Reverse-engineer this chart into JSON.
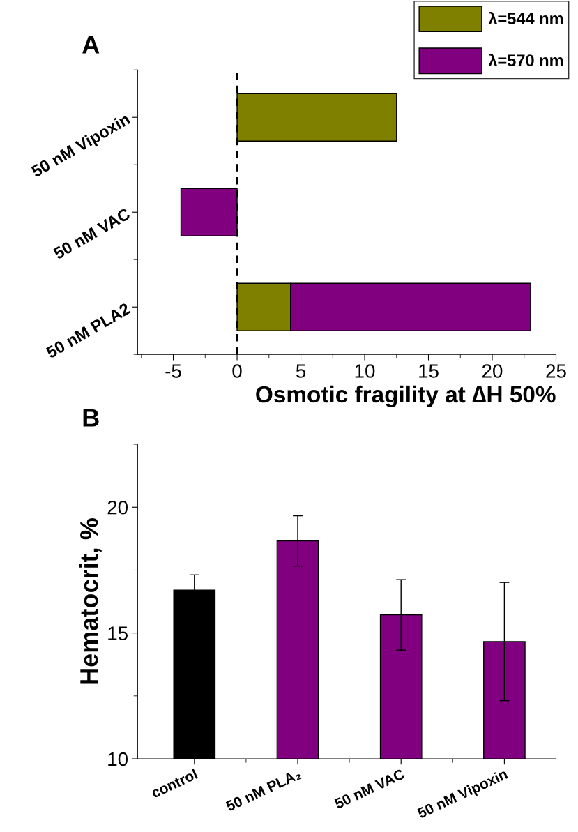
{
  "chart_data": [
    {
      "type": "bar",
      "title": "A",
      "orientation": "horizontal",
      "stacked": true,
      "categories": [
        "50 nM Vipoxin",
        "50 nM VAC",
        "50 nM PLA2"
      ],
      "series": [
        {
          "name": "λ=544 nm",
          "color": "#808000",
          "values": [
            12.5,
            null,
            4.2
          ]
        },
        {
          "name": "λ=570 nm",
          "color": "#800080",
          "values": [
            null,
            -4.4,
            18.8
          ]
        }
      ],
      "xlim": [
        -7.8,
        25
      ],
      "xticks": [
        -5,
        0,
        5,
        10,
        15,
        20,
        25
      ],
      "xlabel": "Osmotic fragility at ∆H 50%",
      "ref_lines": [
        {
          "axis": "x",
          "value": 0,
          "line_style": "dashed",
          "color": "#000000"
        }
      ],
      "legend": "top right"
    },
    {
      "type": "bar",
      "title": "B",
      "categories": [
        "control",
        "50 nM PLA₂",
        "50 nM VAC",
        "50 nM Vipoxin"
      ],
      "values": [
        16.7,
        18.66,
        15.72,
        14.66
      ],
      "colors": [
        "#000000",
        "#800080",
        "#800080",
        "#800080"
      ],
      "errors": [
        0.61,
        1.0,
        1.4,
        2.35
      ],
      "ylim": [
        10,
        22.5
      ],
      "yticks": [
        10,
        15,
        20
      ],
      "ylabel": "Hematocrit, %"
    }
  ]
}
